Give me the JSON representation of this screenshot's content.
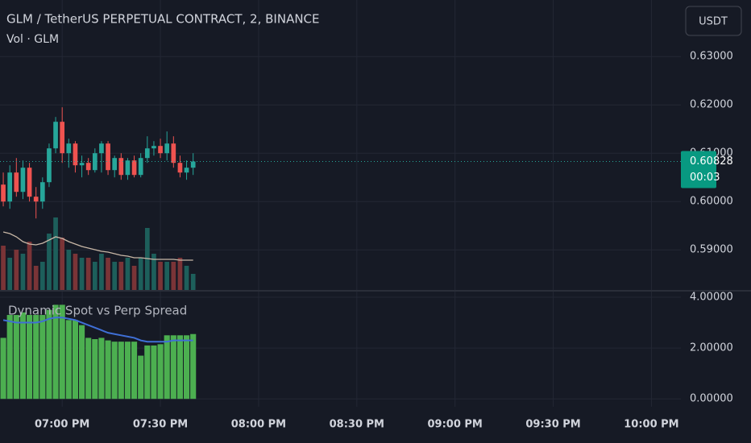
{
  "chart_data": {
    "type": "candlestick",
    "title": "GLM / TetherUS PERPETUAL CONTRACT, 2, BINANCE",
    "currency": "USDT",
    "x": [
      1122,
      1124,
      1126,
      1128,
      1130,
      1132,
      1134,
      1136,
      1138,
      1140,
      1142,
      1144,
      1146,
      1148,
      1150,
      1152,
      1154,
      1156,
      1158,
      1160,
      1162,
      1164,
      1166,
      1168,
      1170,
      1172,
      1174,
      1176,
      1178,
      1180
    ],
    "open": [
      0.6035,
      0.6,
      0.606,
      0.602,
      0.607,
      0.601,
      0.6,
      0.604,
      0.611,
      0.6165,
      0.61,
      0.612,
      0.6075,
      0.608,
      0.6065,
      0.61,
      0.612,
      0.6065,
      0.609,
      0.6055,
      0.6085,
      0.6055,
      0.609,
      0.611,
      0.6115,
      0.61,
      0.612,
      0.608,
      0.606,
      0.607
    ],
    "high": [
      0.606,
      0.6075,
      0.609,
      0.6085,
      0.608,
      0.603,
      0.605,
      0.612,
      0.6175,
      0.6195,
      0.613,
      0.6125,
      0.6095,
      0.609,
      0.611,
      0.6125,
      0.6125,
      0.6095,
      0.61,
      0.609,
      0.6095,
      0.61,
      0.6135,
      0.6125,
      0.613,
      0.6145,
      0.6135,
      0.6095,
      0.6085,
      0.61
    ],
    "low": [
      0.599,
      0.5985,
      0.601,
      0.6005,
      0.6,
      0.5965,
      0.5985,
      0.603,
      0.61,
      0.608,
      0.607,
      0.606,
      0.605,
      0.6055,
      0.606,
      0.606,
      0.6055,
      0.605,
      0.6045,
      0.6045,
      0.605,
      0.605,
      0.608,
      0.6095,
      0.609,
      0.6085,
      0.607,
      0.605,
      0.6045,
      0.6055
    ],
    "close": [
      0.6,
      0.606,
      0.602,
      0.607,
      0.601,
      0.6,
      0.604,
      0.611,
      0.6165,
      0.61,
      0.612,
      0.6075,
      0.608,
      0.6065,
      0.61,
      0.612,
      0.6065,
      0.609,
      0.6055,
      0.6085,
      0.6055,
      0.609,
      0.611,
      0.6115,
      0.61,
      0.612,
      0.608,
      0.606,
      0.607,
      0.60828
    ],
    "up_color": "#26a69a",
    "down_color": "#ef5350",
    "last_price": 0.60828,
    "countdown": "00:03",
    "xlim": [
      1121,
      1329
    ],
    "xticks": [
      {
        "value": 1140,
        "label": "07:00 PM"
      },
      {
        "value": 1170,
        "label": "07:30 PM"
      },
      {
        "value": 1200,
        "label": "08:00 PM"
      },
      {
        "value": 1230,
        "label": "08:30 PM"
      },
      {
        "value": 1260,
        "label": "09:00 PM"
      },
      {
        "value": 1290,
        "label": "09:30 PM"
      },
      {
        "value": 1320,
        "label": "10:00 PM"
      }
    ],
    "ylim": [
      0.5817,
      0.6417
    ],
    "yticks": [
      {
        "value": 0.59,
        "label": "0.59000"
      },
      {
        "value": 0.6,
        "label": "0.60000"
      },
      {
        "value": 0.61,
        "label": "0.61000"
      },
      {
        "value": 0.62,
        "label": "0.62000"
      },
      {
        "value": 0.63,
        "label": "0.63000"
      }
    ],
    "grid": true,
    "volume": {
      "name": "Vol · GLM",
      "values": [
        55,
        40,
        50,
        45,
        60,
        30,
        35,
        70,
        90,
        65,
        50,
        45,
        40,
        40,
        35,
        45,
        40,
        35,
        35,
        40,
        30,
        40,
        77,
        45,
        35,
        35,
        35,
        40,
        30,
        20
      ],
      "ma": [
        72,
        70,
        66,
        60,
        57,
        56,
        58,
        62,
        66,
        64,
        60,
        57,
        54,
        52,
        50,
        48,
        47,
        45,
        43,
        42,
        40,
        40,
        39,
        38,
        38,
        38,
        38,
        37,
        37,
        37
      ],
      "up_color": "#1d5f5b",
      "down_color": "#7a3437",
      "ma_color": "#c8b7a6"
    },
    "indicator": {
      "title": "Dynamic Spot vs Perp Spread",
      "histogram": [
        2.4,
        3.3,
        3.3,
        3.4,
        3.3,
        3.3,
        3.3,
        3.5,
        3.7,
        3.7,
        3.1,
        3.1,
        2.9,
        2.4,
        2.35,
        2.4,
        2.3,
        2.25,
        2.25,
        2.25,
        2.25,
        1.7,
        2.1,
        2.1,
        2.15,
        2.5,
        2.5,
        2.5,
        2.5,
        2.55
      ],
      "line": [
        3.1,
        3.05,
        3.0,
        3.0,
        3.0,
        3.0,
        3.05,
        3.15,
        3.2,
        3.2,
        3.15,
        3.1,
        3.0,
        2.9,
        2.8,
        2.7,
        2.6,
        2.55,
        2.5,
        2.45,
        2.4,
        2.3,
        2.25,
        2.25,
        2.25,
        2.25,
        2.3,
        2.3,
        2.3,
        2.3
      ],
      "histogram_color": "#4caf50",
      "line_color": "#3f6fd6",
      "ylim": [
        -0.31,
        4.22
      ],
      "yticks": [
        {
          "value": 0,
          "label": "0.00000"
        },
        {
          "value": 2,
          "label": "2.00000"
        },
        {
          "value": 4,
          "label": "4.00000"
        }
      ]
    }
  }
}
